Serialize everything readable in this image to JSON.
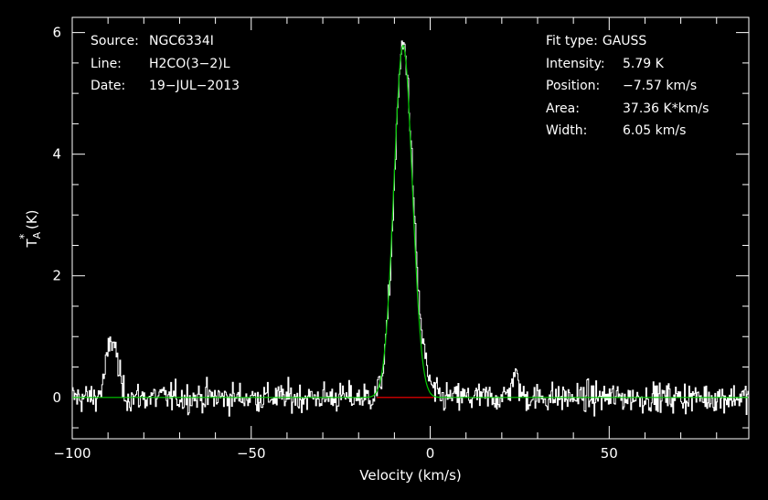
{
  "header_left": {
    "source_label": "Source:",
    "source_value": "NGC6334I",
    "line_label": "Line:",
    "line_value": "H2CO(3−2)L",
    "date_label": "Date:",
    "date_value": "19−JUL−2013"
  },
  "header_right": {
    "fit_label": "Fit type:",
    "fit_value": "GAUSS",
    "intensity_label": "Intensity:",
    "intensity_value": "5.79 K",
    "position_label": "Position:",
    "position_value": "−7.57 km/s",
    "area_label": "Area:",
    "area_value": "37.36 K*km/s",
    "width_label": "Width:",
    "width_value": "6.05 km/s"
  },
  "colors": {
    "background": "#000000",
    "axes": "#ffffff",
    "spectrum": "#ffffff",
    "fit": "#00cc00",
    "baseline": "#ff0000"
  },
  "chart_data": {
    "type": "line",
    "xlabel": "Velocity (km/s)",
    "ylabel_main": "T",
    "ylabel_sup": "*",
    "ylabel_sub": "A",
    "ylabel_unit": " (K)",
    "xlim": [
      -100,
      89
    ],
    "ylim": [
      -0.68,
      6.25
    ],
    "x_ticks": [
      -100,
      -50,
      0,
      50
    ],
    "x_tick_labels": [
      "−100",
      "−50",
      "0",
      "50"
    ],
    "y_ticks": [
      0,
      2,
      4,
      6
    ],
    "y_tick_labels": [
      "0",
      "2",
      "4",
      "6"
    ],
    "noise_rms": 0.12,
    "series": [
      {
        "role": "spectrum",
        "features": [
          {
            "center": -7.57,
            "peak": 5.79,
            "fwhm": 6.05
          },
          {
            "center": -89,
            "peak": 0.95,
            "fwhm": 3.6
          },
          {
            "center": 23.5,
            "peak": 0.35,
            "fwhm": 2.5
          },
          {
            "center": -2,
            "peak": 0.3,
            "fwhm": 4.0
          }
        ]
      },
      {
        "role": "gaussian-fit",
        "center": -7.57,
        "peak": 5.79,
        "fwhm": 6.05
      },
      {
        "role": "baseline-window",
        "x": [
          -15,
          1
        ],
        "y": [
          0,
          0
        ]
      }
    ]
  }
}
